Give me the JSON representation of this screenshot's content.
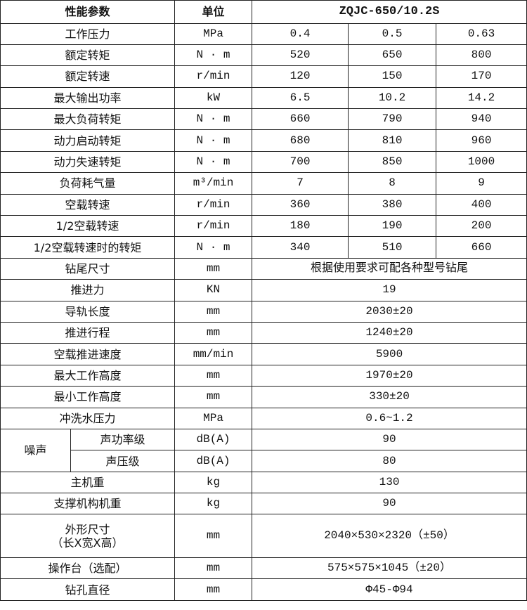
{
  "header": {
    "param": "性能参数",
    "unit": "单位",
    "model": "ZQJC-650/10.2S"
  },
  "rows": [
    {
      "label": "工作压力",
      "unit": "MPa",
      "values": [
        "0.4",
        "0.5",
        "0.63"
      ]
    },
    {
      "label": "额定转矩",
      "unit": "N · m",
      "values": [
        "520",
        "650",
        "800"
      ]
    },
    {
      "label": "额定转速",
      "unit": "r/min",
      "values": [
        "120",
        "150",
        "170"
      ]
    },
    {
      "label": "最大输出功率",
      "unit": "kW",
      "values": [
        "6.5",
        "10.2",
        "14.2"
      ]
    },
    {
      "label": "最大负荷转矩",
      "unit": "N · m",
      "values": [
        "660",
        "790",
        "940"
      ]
    },
    {
      "label": "动力启动转矩",
      "unit": "N · m",
      "values": [
        "680",
        "810",
        "960"
      ]
    },
    {
      "label": "动力失速转矩",
      "unit": "N · m",
      "values": [
        "700",
        "850",
        "1000"
      ]
    },
    {
      "label": "负荷耗气量",
      "unit": "m³/min",
      "values": [
        "7",
        "8",
        "9"
      ]
    },
    {
      "label": "空载转速",
      "unit": "r/min",
      "values": [
        "360",
        "380",
        "400"
      ]
    },
    {
      "label": "1/2空载转速",
      "unit": "r/min",
      "values": [
        "180",
        "190",
        "200"
      ]
    },
    {
      "label": "1/2空载转速时的转矩",
      "unit": "N · m",
      "values": [
        "340",
        "510",
        "660"
      ]
    },
    {
      "label": "钻尾尺寸",
      "unit": "mm",
      "values": [
        "根据使用要求可配各种型号钻尾"
      ]
    },
    {
      "label": "推进力",
      "unit": "KN",
      "values": [
        "19"
      ]
    },
    {
      "label": "导轨长度",
      "unit": "mm",
      "values": [
        "2030±20"
      ]
    },
    {
      "label": "推进行程",
      "unit": "mm",
      "values": [
        "1240±20"
      ]
    },
    {
      "label": "空载推进速度",
      "unit": "mm/min",
      "values": [
        "5900"
      ]
    },
    {
      "label": "最大工作高度",
      "unit": "mm",
      "values": [
        "1970±20"
      ]
    },
    {
      "label": "最小工作高度",
      "unit": "mm",
      "values": [
        "330±20"
      ]
    },
    {
      "label": "冲洗水压力",
      "unit": "MPa",
      "values": [
        "0.6~1.2"
      ]
    }
  ],
  "noise": {
    "group": "噪声",
    "rows": [
      {
        "label": "声功率级",
        "unit": "dB(A)",
        "value": "90"
      },
      {
        "label": "声压级",
        "unit": "dB(A)",
        "value": "80"
      }
    ]
  },
  "rows2": [
    {
      "label": "主机重",
      "unit": "kg",
      "values": [
        "130"
      ]
    },
    {
      "label": "支撑机构机重",
      "unit": "kg",
      "values": [
        "90"
      ]
    },
    {
      "label": "外形尺寸\n（长X宽X高）",
      "unit": "mm",
      "values": [
        "2040×530×2320（±50）"
      ],
      "tall": true
    },
    {
      "label": "操作台（选配）",
      "unit": "mm",
      "values": [
        "575×575×1045（±20）"
      ]
    },
    {
      "label": "钻孔直径",
      "unit": "mm",
      "values": [
        "Φ45-Φ94"
      ]
    }
  ]
}
